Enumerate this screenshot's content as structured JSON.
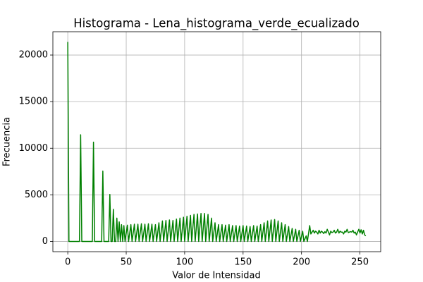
{
  "chart_data": {
    "type": "line",
    "title": "Histograma - Lena_histograma_verde_ecualizado",
    "xlabel": "Valor de Intensidad",
    "ylabel": "Frecuencia",
    "color": "#008000",
    "grid": true,
    "xlim": [
      -12.75,
      267.75
    ],
    "ylim": [
      -1100,
      22500
    ],
    "xticks": [
      0,
      50,
      100,
      150,
      200,
      250
    ],
    "yticks": [
      0,
      5000,
      10000,
      15000,
      20000
    ],
    "x": [
      0,
      1,
      10,
      11,
      12,
      21,
      22,
      23,
      29,
      30,
      31,
      35,
      36,
      37,
      38,
      39,
      40,
      41,
      42,
      43,
      44,
      45,
      46,
      47,
      48,
      49,
      51,
      52,
      54,
      55,
      57,
      58,
      60,
      61,
      63,
      64,
      66,
      67,
      69,
      70,
      72,
      73,
      75,
      76,
      78,
      79,
      81,
      82,
      84,
      85,
      87,
      88,
      90,
      91,
      93,
      94,
      96,
      97,
      99,
      100,
      102,
      103,
      105,
      106,
      108,
      109,
      111,
      112,
      114,
      115,
      117,
      118,
      120,
      121,
      123,
      124,
      126,
      127,
      129,
      130,
      132,
      133,
      135,
      136,
      138,
      139,
      141,
      142,
      144,
      145,
      147,
      148,
      150,
      151,
      153,
      154,
      156,
      157,
      159,
      160,
      162,
      163,
      165,
      166,
      168,
      169,
      171,
      172,
      174,
      175,
      177,
      178,
      180,
      181,
      183,
      184,
      186,
      187,
      189,
      190,
      192,
      193,
      195,
      196,
      198,
      199,
      201,
      202,
      204,
      205,
      207,
      208,
      209,
      210,
      211,
      212,
      213,
      214,
      215,
      216,
      217,
      218,
      219,
      220,
      221,
      222,
      223,
      224,
      225,
      226,
      227,
      228,
      229,
      230,
      231,
      232,
      233,
      234,
      235,
      236,
      237,
      238,
      239,
      240,
      241,
      242,
      243,
      244,
      245,
      246,
      247,
      248,
      249,
      250,
      251,
      252,
      253,
      254,
      255
    ],
    "values": [
      21400,
      0,
      0,
      11450,
      0,
      0,
      10650,
      0,
      0,
      7550,
      0,
      0,
      5050,
      0,
      0,
      3450,
      0,
      0,
      2500,
      0,
      2100,
      0,
      1800,
      0,
      1700,
      0,
      1750,
      0,
      1800,
      0,
      1850,
      0,
      1850,
      0,
      1900,
      0,
      1850,
      0,
      1900,
      0,
      1850,
      0,
      1800,
      0,
      2000,
      0,
      2200,
      0,
      2250,
      0,
      2300,
      0,
      2250,
      0,
      2400,
      0,
      2500,
      0,
      2600,
      0,
      2700,
      0,
      2800,
      0,
      2900,
      0,
      2950,
      0,
      3000,
      0,
      3000,
      0,
      2900,
      0,
      2500,
      0,
      2000,
      0,
      1800,
      0,
      1800,
      0,
      1750,
      0,
      1800,
      0,
      1700,
      0,
      1700,
      0,
      1650,
      0,
      1700,
      0,
      1650,
      0,
      1600,
      0,
      1700,
      0,
      1650,
      0,
      1800,
      0,
      2000,
      0,
      2200,
      0,
      2300,
      0,
      2350,
      0,
      2200,
      0,
      2000,
      0,
      1800,
      0,
      1600,
      0,
      1400,
      0,
      1300,
      0,
      1200,
      0,
      1100,
      0,
      600,
      0,
      1700,
      800,
      1000,
      1200,
      900,
      1100,
      1000,
      800,
      1200,
      900,
      1100,
      1000,
      850,
      1050,
      900,
      1300,
      1000,
      700,
      1100,
      950,
      1000,
      1200,
      900,
      1000,
      1300,
      900,
      1100,
      1000,
      1000,
      800,
      1100,
      1000,
      1300,
      950,
      1000,
      1050,
      1000,
      1200,
      900,
      1000,
      700,
      1000,
      1300,
      900,
      1250,
      800,
      1200,
      700,
      600
    ]
  }
}
